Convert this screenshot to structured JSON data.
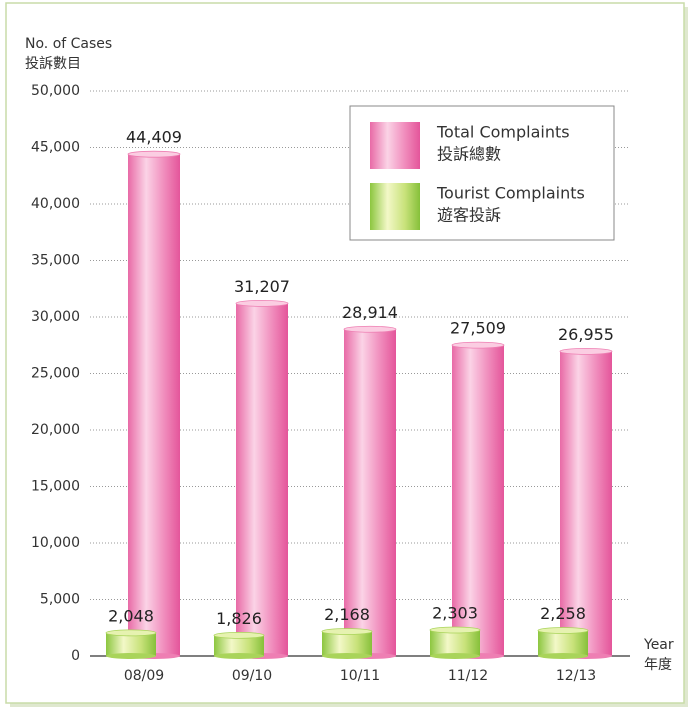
{
  "chart_data": {
    "type": "bar",
    "y_label": [
      "No. of Cases",
      "投訴數目"
    ],
    "x_label": [
      "Year",
      "年度"
    ],
    "categories": [
      "08/09",
      "09/10",
      "10/11",
      "11/12",
      "12/13"
    ],
    "series": [
      {
        "name": "Total Complaints",
        "name_zh": "投訴總數",
        "color": "#ee7fb3",
        "values": [
          44409,
          31207,
          28914,
          27509,
          26955
        ],
        "value_labels": [
          "44,409",
          "31,207",
          "28,914",
          "27,509",
          "26,955"
        ]
      },
      {
        "name": "Tourist Complaints",
        "name_zh": "遊客投訴",
        "color": "#a9d45a",
        "values": [
          2048,
          1826,
          2168,
          2303,
          2258
        ],
        "value_labels": [
          "2,048",
          "1,826",
          "2,168",
          "2,303",
          "2,258"
        ]
      }
    ],
    "ylim": [
      0,
      50000
    ],
    "yticks": [
      0,
      {
        "value": 5000,
        "label": "5,000"
      },
      {
        "value": 10000,
        "label": "10,000"
      },
      {
        "value": 15000,
        "label": "15,000"
      },
      {
        "value": 20000,
        "label": "20,000"
      },
      {
        "value": 25000,
        "label": "25,000"
      },
      {
        "value": 30000,
        "label": "30,000"
      },
      {
        "value": 35000,
        "label": "35,000"
      },
      {
        "value": 40000,
        "label": "40,000"
      },
      {
        "value": 45000,
        "label": "45,000"
      },
      {
        "value": 50000,
        "label": "50,000"
      }
    ],
    "grid": true,
    "legend": "upper right"
  }
}
